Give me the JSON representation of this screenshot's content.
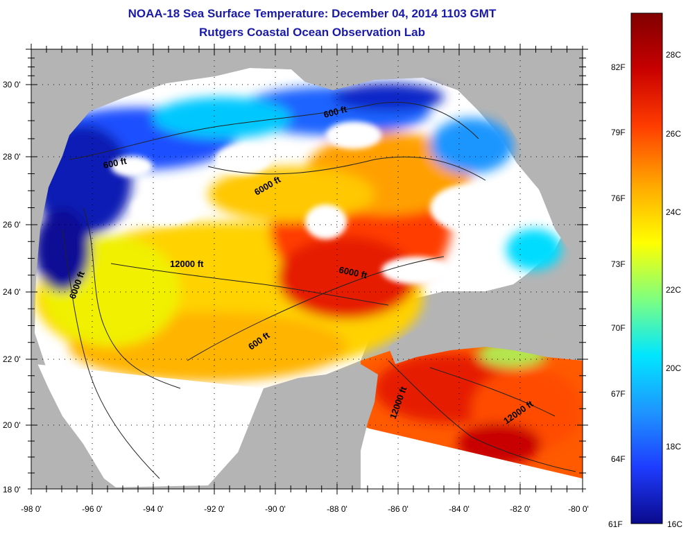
{
  "title": "NOAA-18 Sea Surface Temperature:  December 04, 2014 1103 GMT",
  "subtitle": "Rutgers Coastal Ocean Observation Lab",
  "lat_labels": [
    "30 0'",
    "28 0'",
    "26 0'",
    "24 0'",
    "22 0'",
    "20 0'",
    "18 0'"
  ],
  "lon_labels": [
    "-98 0'",
    "-96 0'",
    "-94 0'",
    "-92 0'",
    "-90 0'",
    "-88 0'",
    "-86 0'",
    "-84 0'",
    "-82 0'",
    "-80 0'"
  ],
  "contour_labels": [
    "600 ft",
    "600 ft",
    "6000 ft",
    "12000 ft",
    "6000 ft",
    "6000 ft",
    "600 ft",
    "12000 ft",
    "12000 ft"
  ],
  "colorbar": {
    "f_labels": [
      "82F",
      "79F",
      "76F",
      "73F",
      "70F",
      "67F",
      "64F",
      "61F"
    ],
    "c_labels": [
      "28C",
      "26C",
      "24C",
      "22C",
      "20C",
      "18C",
      "16C"
    ],
    "colors": [
      "#0a0a8c",
      "#1e3cff",
      "#1e96ff",
      "#00e6ff",
      "#7fff7f",
      "#ffff00",
      "#ffaa00",
      "#ff3c00",
      "#c80000",
      "#800000"
    ]
  },
  "colors": {
    "land": "#b4b4b4",
    "cloud_mask": "#ffffff",
    "title": "#1a1aa8",
    "contour": "#222222"
  }
}
